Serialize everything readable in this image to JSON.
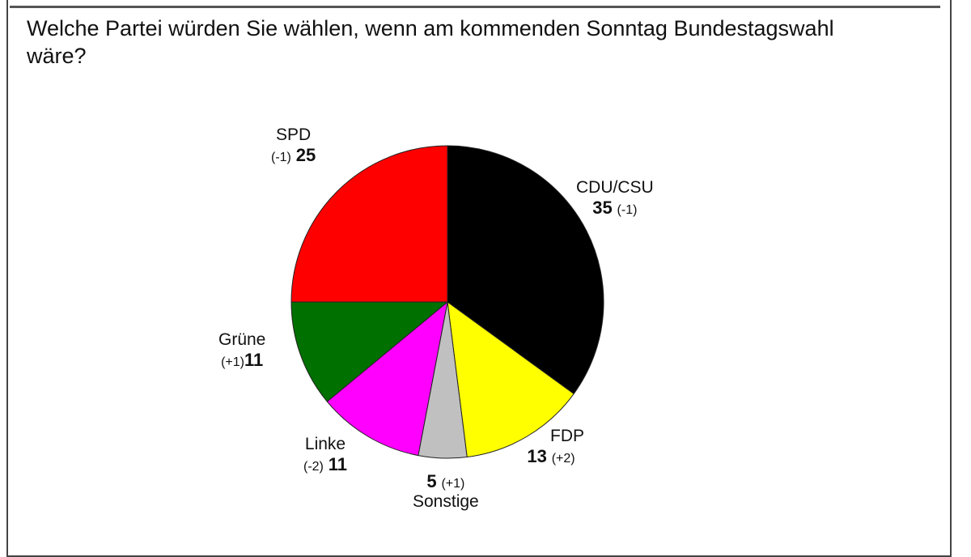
{
  "chart_data": {
    "type": "pie",
    "title": "Welche Partei würden Sie wählen, wenn am kommenden Sonntag Bundestagswahl wäre?",
    "slices": [
      {
        "label": "CDU/CSU",
        "value": 35,
        "change": "(-1)",
        "color": "#000000"
      },
      {
        "label": "FDP",
        "value": 13,
        "change": "(+2)",
        "color": "#ffff00"
      },
      {
        "label": "Sonstige",
        "value": 5,
        "change": "(+1)",
        "color": "#c0c0c0"
      },
      {
        "label": "Linke",
        "value": 11,
        "change": "(-2)",
        "color": "#ff00ff"
      },
      {
        "label": "Grüne",
        "value": 11,
        "change": "(+1)",
        "color": "#007000"
      },
      {
        "label": "SPD",
        "value": 25,
        "change": "(-1)",
        "color": "#ff0000"
      }
    ]
  }
}
